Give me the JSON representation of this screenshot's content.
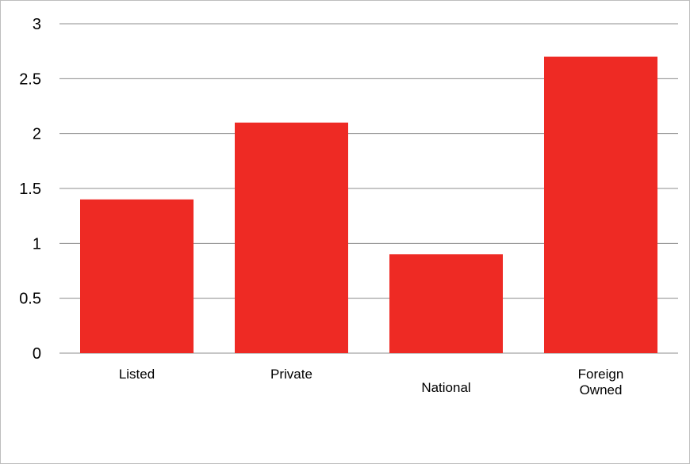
{
  "chart_data": {
    "type": "bar",
    "categories": [
      "Listed",
      "Private",
      "National",
      "Foreign Owned"
    ],
    "category_label_lines": [
      [
        "Listed"
      ],
      [
        "Private"
      ],
      [
        "National"
      ],
      [
        "Foreign",
        "Owned"
      ]
    ],
    "values": [
      1.4,
      2.1,
      0.9,
      2.7
    ],
    "y_ticks": [
      "0",
      "0.5",
      "1",
      "1.5",
      "2",
      "2.5",
      "3"
    ],
    "ylim": [
      0,
      3
    ],
    "grid": true,
    "bar_color": "#ee2a24",
    "title": "",
    "xlabel": "",
    "ylabel": ""
  }
}
